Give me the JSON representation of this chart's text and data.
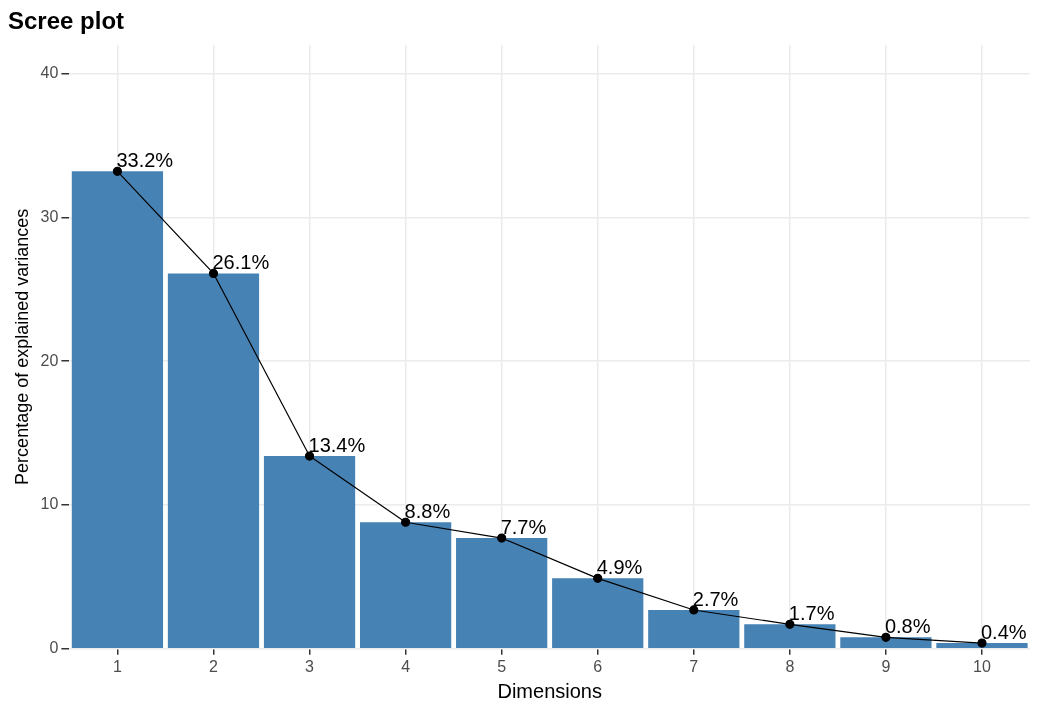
{
  "chart_data": {
    "type": "bar",
    "title": "Scree plot",
    "xlabel": "Dimensions",
    "ylabel": "Percentage of explained variances",
    "categories": [
      "1",
      "2",
      "3",
      "4",
      "5",
      "6",
      "7",
      "8",
      "9",
      "10"
    ],
    "series": [
      {
        "color": "#4682b4",
        "values": [
          33.2,
          26.1,
          13.4,
          8.8,
          7.7,
          4.9,
          2.7,
          1.7,
          0.8,
          0.4
        ]
      },
      {
        "type": "line",
        "color": "#000000",
        "marker": "circle",
        "values": [
          33.2,
          26.1,
          13.4,
          8.8,
          7.7,
          4.9,
          2.7,
          1.7,
          0.8,
          0.4
        ],
        "value_labels": [
          "33.2%",
          "26.1%",
          "13.4%",
          "8.8%",
          "7.7%",
          "4.9%",
          "2.7%",
          "1.7%",
          "0.8%",
          "0.4%"
        ]
      }
    ],
    "ylim": [
      0,
      42
    ],
    "yticks": [
      0,
      10,
      20,
      30,
      40
    ],
    "grid": true,
    "legend": false
  }
}
